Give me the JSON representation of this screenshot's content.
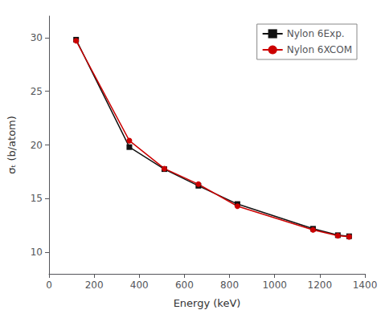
{
  "chart_data": {
    "type": "line",
    "x_label": "Energy (keV)",
    "y_label": "σₜ (b/atom)",
    "x": [
      120,
      356,
      511,
      662,
      835,
      1170,
      1280,
      1330
    ],
    "series": [
      {
        "name": "Nylon 6Exp.",
        "color": "#111111",
        "marker": "square",
        "values": [
          29.8,
          19.8,
          17.75,
          16.2,
          14.5,
          12.2,
          11.6,
          11.5
        ]
      },
      {
        "name": "Nylon 6XCOM",
        "color": "#cc0000",
        "marker": "circle",
        "values": [
          29.7,
          20.4,
          17.8,
          16.35,
          14.3,
          12.1,
          11.55,
          11.45
        ]
      }
    ],
    "xlim": [
      0,
      1400
    ],
    "xticks": [
      0,
      200,
      400,
      600,
      800,
      1000,
      1200,
      1400
    ],
    "ylim": [
      8,
      32
    ],
    "yticks": [
      10,
      15,
      20,
      25,
      30
    ],
    "grid": false,
    "legend": "upper right"
  }
}
